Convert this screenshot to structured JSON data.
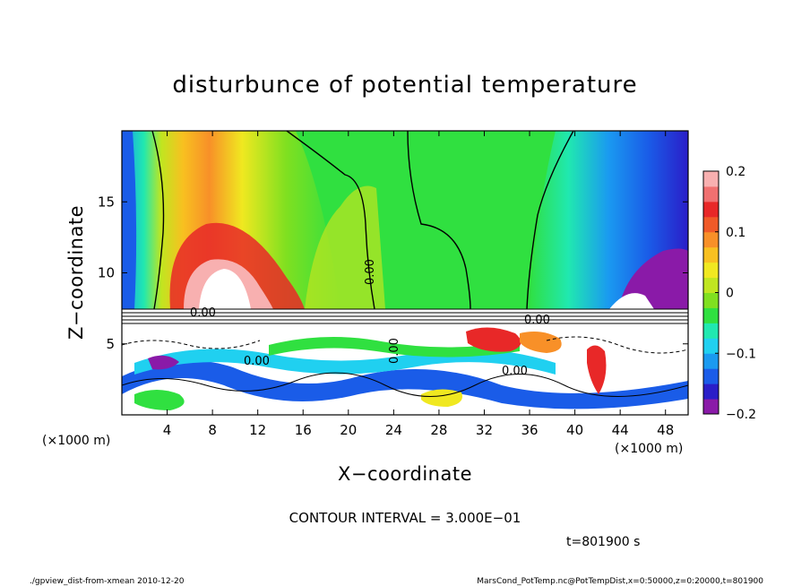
{
  "chart_data": {
    "type": "heatmap",
    "title": "disturbunce of potential temperature",
    "xlabel": "X−coordinate",
    "ylabel": "Z−coordinate",
    "x_unit_label": "(×1000 m)",
    "z_unit_label": "(×1000 m)",
    "x_range": [
      0,
      50
    ],
    "z_range": [
      0,
      20
    ],
    "x_ticks": [
      4,
      8,
      12,
      16,
      20,
      24,
      28,
      32,
      36,
      40,
      44,
      48
    ],
    "x_tick_labels": [
      "4",
      "8",
      "12",
      "16",
      "20",
      "24",
      "28",
      "32",
      "36",
      "40",
      "44",
      "48"
    ],
    "z_ticks": [
      5,
      10,
      15
    ],
    "z_tick_labels": [
      "5",
      "10",
      "15"
    ],
    "colorbar": {
      "range": [
        -0.2,
        0.2
      ],
      "ticks": [
        0.2,
        0.1,
        0,
        -0.1,
        -0.2
      ],
      "tick_labels": [
        "0.2",
        "0.1",
        "0",
        "−0.1",
        "−0.2"
      ],
      "colors": [
        "#8a1aa8",
        "#2a1ec8",
        "#1a5ce8",
        "#1a9af0",
        "#20d0f0",
        "#20e8b0",
        "#30e040",
        "#80e020",
        "#c0e620",
        "#f0e820",
        "#f8c020",
        "#f89028",
        "#f05a28",
        "#e82828",
        "#f07070",
        "#f8b0b0"
      ]
    },
    "contour_labels": [
      "0.00",
      "0.00",
      "0.00",
      "0.00",
      "0.00",
      "0.00"
    ],
    "contour_interval": "CONTOUR INTERVAL = 3.000E−01",
    "time_label": "t=801900 s",
    "footer_left": "./gpview_dist-from-xmean  2010-12-20",
    "footer_right": "MarsCond_PotTemp.nc@PotTempDist,x=0:50000,z=0:20000,t=801900"
  }
}
